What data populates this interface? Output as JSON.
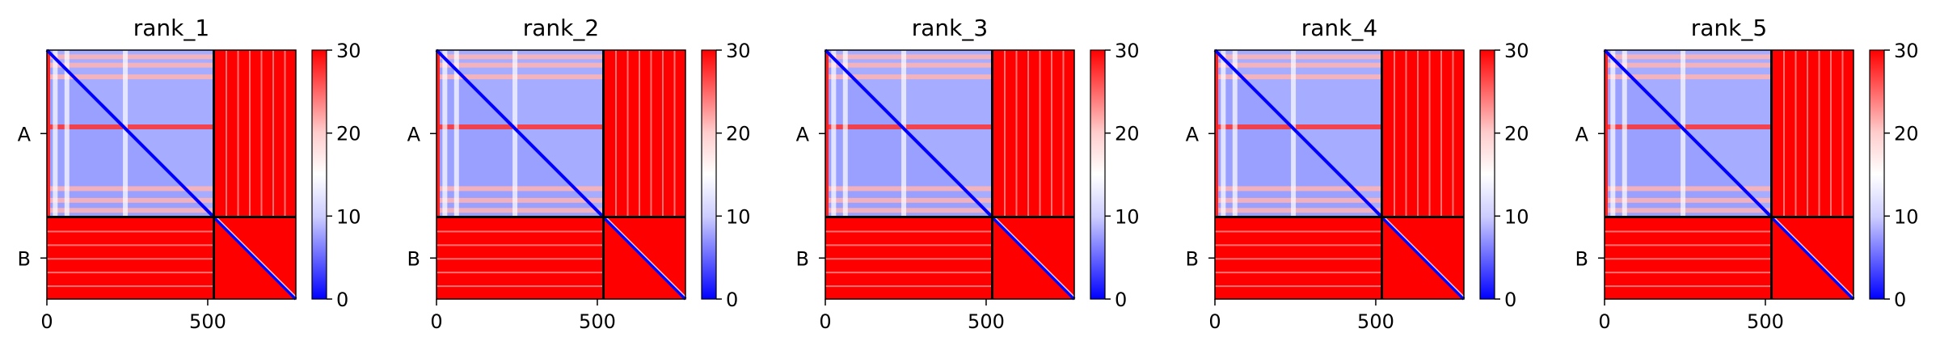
{
  "figure": {
    "colormap": "bwr",
    "colors": {
      "low": "#0000ff",
      "mid": "#ffffff",
      "high": "#ff0000",
      "divider": "#000000"
    }
  },
  "chart_data": [
    {
      "type": "heatmap",
      "title": "rank_1",
      "chains": [
        "A",
        "B"
      ],
      "chain_boundary": 519,
      "x_range": [
        0,
        774
      ],
      "y_range": [
        0,
        774
      ],
      "x_ticks": [
        0,
        500
      ],
      "colorbar": {
        "range": [
          0,
          30
        ],
        "ticks": [
          0,
          10,
          20,
          30
        ]
      }
    },
    {
      "type": "heatmap",
      "title": "rank_2",
      "chains": [
        "A",
        "B"
      ],
      "chain_boundary": 519,
      "x_range": [
        0,
        774
      ],
      "y_range": [
        0,
        774
      ],
      "x_ticks": [
        0,
        500
      ],
      "colorbar": {
        "range": [
          0,
          30
        ],
        "ticks": [
          0,
          10,
          20,
          30
        ]
      }
    },
    {
      "type": "heatmap",
      "title": "rank_3",
      "chains": [
        "A",
        "B"
      ],
      "chain_boundary": 519,
      "x_range": [
        0,
        774
      ],
      "y_range": [
        0,
        774
      ],
      "x_ticks": [
        0,
        500
      ],
      "colorbar": {
        "range": [
          0,
          30
        ],
        "ticks": [
          0,
          10,
          20,
          30
        ]
      }
    },
    {
      "type": "heatmap",
      "title": "rank_4",
      "chains": [
        "A",
        "B"
      ],
      "chain_boundary": 519,
      "x_range": [
        0,
        774
      ],
      "y_range": [
        0,
        774
      ],
      "x_ticks": [
        0,
        500
      ],
      "colorbar": {
        "range": [
          0,
          30
        ],
        "ticks": [
          0,
          10,
          20,
          30
        ]
      }
    },
    {
      "type": "heatmap",
      "title": "rank_5",
      "chains": [
        "A",
        "B"
      ],
      "chain_boundary": 519,
      "x_range": [
        0,
        774
      ],
      "y_range": [
        0,
        774
      ],
      "x_ticks": [
        0,
        500
      ],
      "colorbar": {
        "range": [
          0,
          30
        ],
        "ticks": [
          0,
          10,
          20,
          30
        ]
      }
    }
  ]
}
